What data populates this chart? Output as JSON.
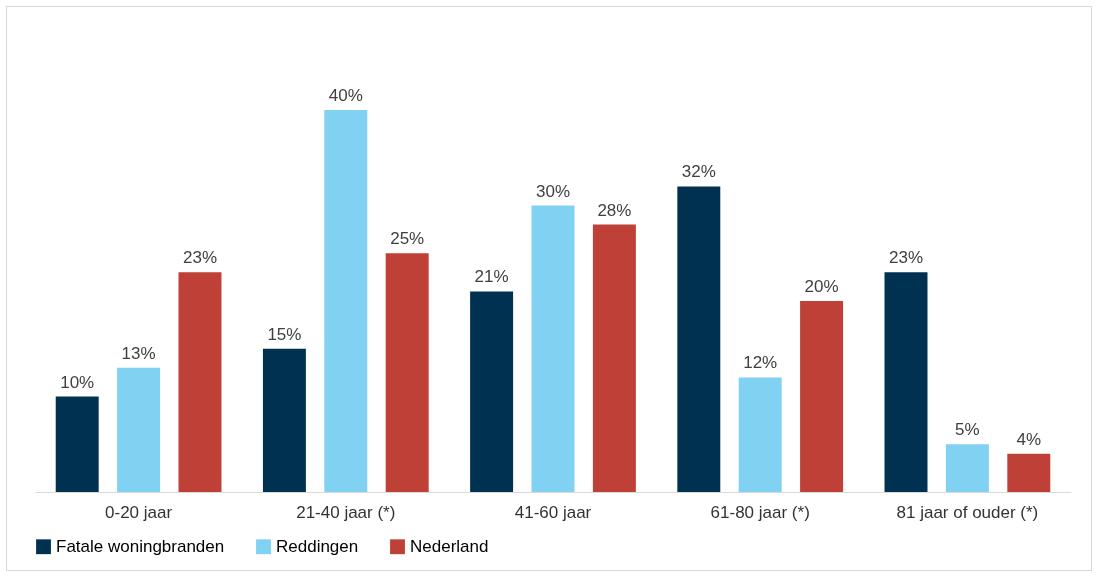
{
  "chart_data": {
    "type": "bar",
    "categories": [
      "0-20 jaar",
      "21-40 jaar (*)",
      "41-60 jaar",
      "61-80 jaar (*)",
      "81 jaar of ouder (*)"
    ],
    "series": [
      {
        "name": "Fatale woningbranden",
        "color": "#003150",
        "values": [
          10,
          15,
          21,
          32,
          23
        ],
        "value_labels": [
          "10%",
          "15%",
          "21%",
          "32%",
          "23%"
        ]
      },
      {
        "name": "Reddingen",
        "color": "#81d1f3",
        "values": [
          13,
          40,
          30,
          12,
          5
        ],
        "value_labels": [
          "13%",
          "40%",
          "30%",
          "12%",
          "5%"
        ]
      },
      {
        "name": "Nederland",
        "color": "#be4036",
        "values": [
          23,
          25,
          28,
          20,
          4
        ],
        "value_labels": [
          "23%",
          "25%",
          "28%",
          "20%",
          "4%"
        ]
      }
    ],
    "tick_labels": "x",
    "grid": false,
    "legend": "bottom"
  }
}
